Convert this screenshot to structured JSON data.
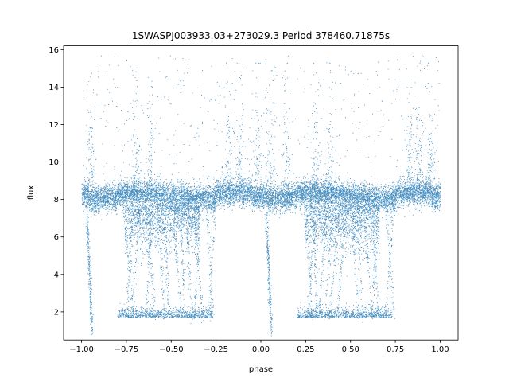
{
  "chart_data": {
    "type": "scatter",
    "title": "1SWASPJ003933.03+273029.3 Period 378460.71875s",
    "xlabel": "phase",
    "ylabel": "flux",
    "xlim": [
      -1.1,
      1.1
    ],
    "ylim": [
      0.5,
      16.2
    ],
    "xticks": [
      -1.0,
      -0.75,
      -0.5,
      -0.25,
      0.0,
      0.25,
      0.5,
      0.75,
      1.0
    ],
    "xtick_labels": [
      "−1.00",
      "−0.75",
      "−0.50",
      "−0.25",
      "0.00",
      "0.25",
      "0.50",
      "0.75",
      "1.00"
    ],
    "yticks": [
      2,
      4,
      6,
      8,
      10,
      12,
      14,
      16
    ],
    "ytick_labels": [
      "2",
      "4",
      "6",
      "8",
      "10",
      "12",
      "14",
      "16"
    ],
    "grid": false,
    "marker_color": "#1f77b4",
    "description_of_points": {
      "phase_range": [
        -1.0,
        1.0
      ],
      "baseline_flux": 8.2,
      "baseline_scatter": 0.35,
      "spikes_upper_max": 15.3,
      "dips_lower_min": 1.4,
      "dip_region_centers": [
        -0.5,
        0.5
      ],
      "narrow_dips": [
        -0.96,
        0.04
      ]
    }
  }
}
